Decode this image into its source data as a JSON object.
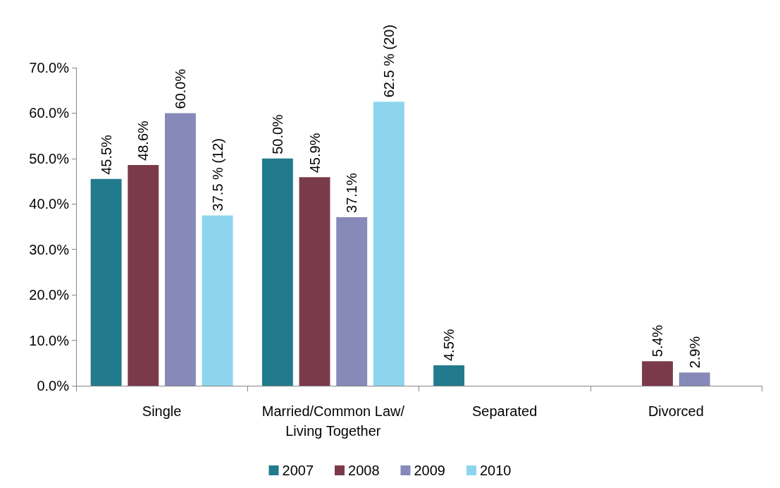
{
  "chart_data": {
    "type": "bar",
    "categories": [
      "Single",
      "Married/Common Law/Living Together",
      "Separated",
      "Divorced"
    ],
    "series": [
      {
        "name": "2007",
        "color": "#227a8d",
        "values": [
          45.5,
          50.0,
          4.5,
          null
        ],
        "value_labels": [
          "45.5%",
          "50.0%",
          "4.5%",
          null
        ]
      },
      {
        "name": "2008",
        "color": "#7b3a4a",
        "values": [
          48.6,
          45.9,
          null,
          5.4
        ],
        "value_labels": [
          "48.6%",
          "45.9%",
          null,
          "5.4%"
        ]
      },
      {
        "name": "2009",
        "color": "#8789b8",
        "values": [
          60.0,
          37.1,
          null,
          2.9
        ],
        "value_labels": [
          "60.0%",
          "37.1%",
          null,
          "2.9%"
        ]
      },
      {
        "name": "2010",
        "color": "#8dd5ee",
        "values": [
          37.5,
          62.5,
          null,
          null
        ],
        "value_labels": [
          "37.5 % (12)",
          "62.5 % (20)",
          null,
          null
        ]
      }
    ],
    "ylim": [
      0,
      70
    ],
    "yticks": [
      {
        "value": 0,
        "label": "0.0%"
      },
      {
        "value": 10,
        "label": "10.0%"
      },
      {
        "value": 20,
        "label": "20.0%"
      },
      {
        "value": 30,
        "label": "30.0%"
      },
      {
        "value": 40,
        "label": "40.0%"
      },
      {
        "value": 50,
        "label": "50.0%"
      },
      {
        "value": 60,
        "label": "60.0%"
      },
      {
        "value": 70,
        "label": "70.0%"
      }
    ],
    "grid": false,
    "legend": "bottom"
  }
}
